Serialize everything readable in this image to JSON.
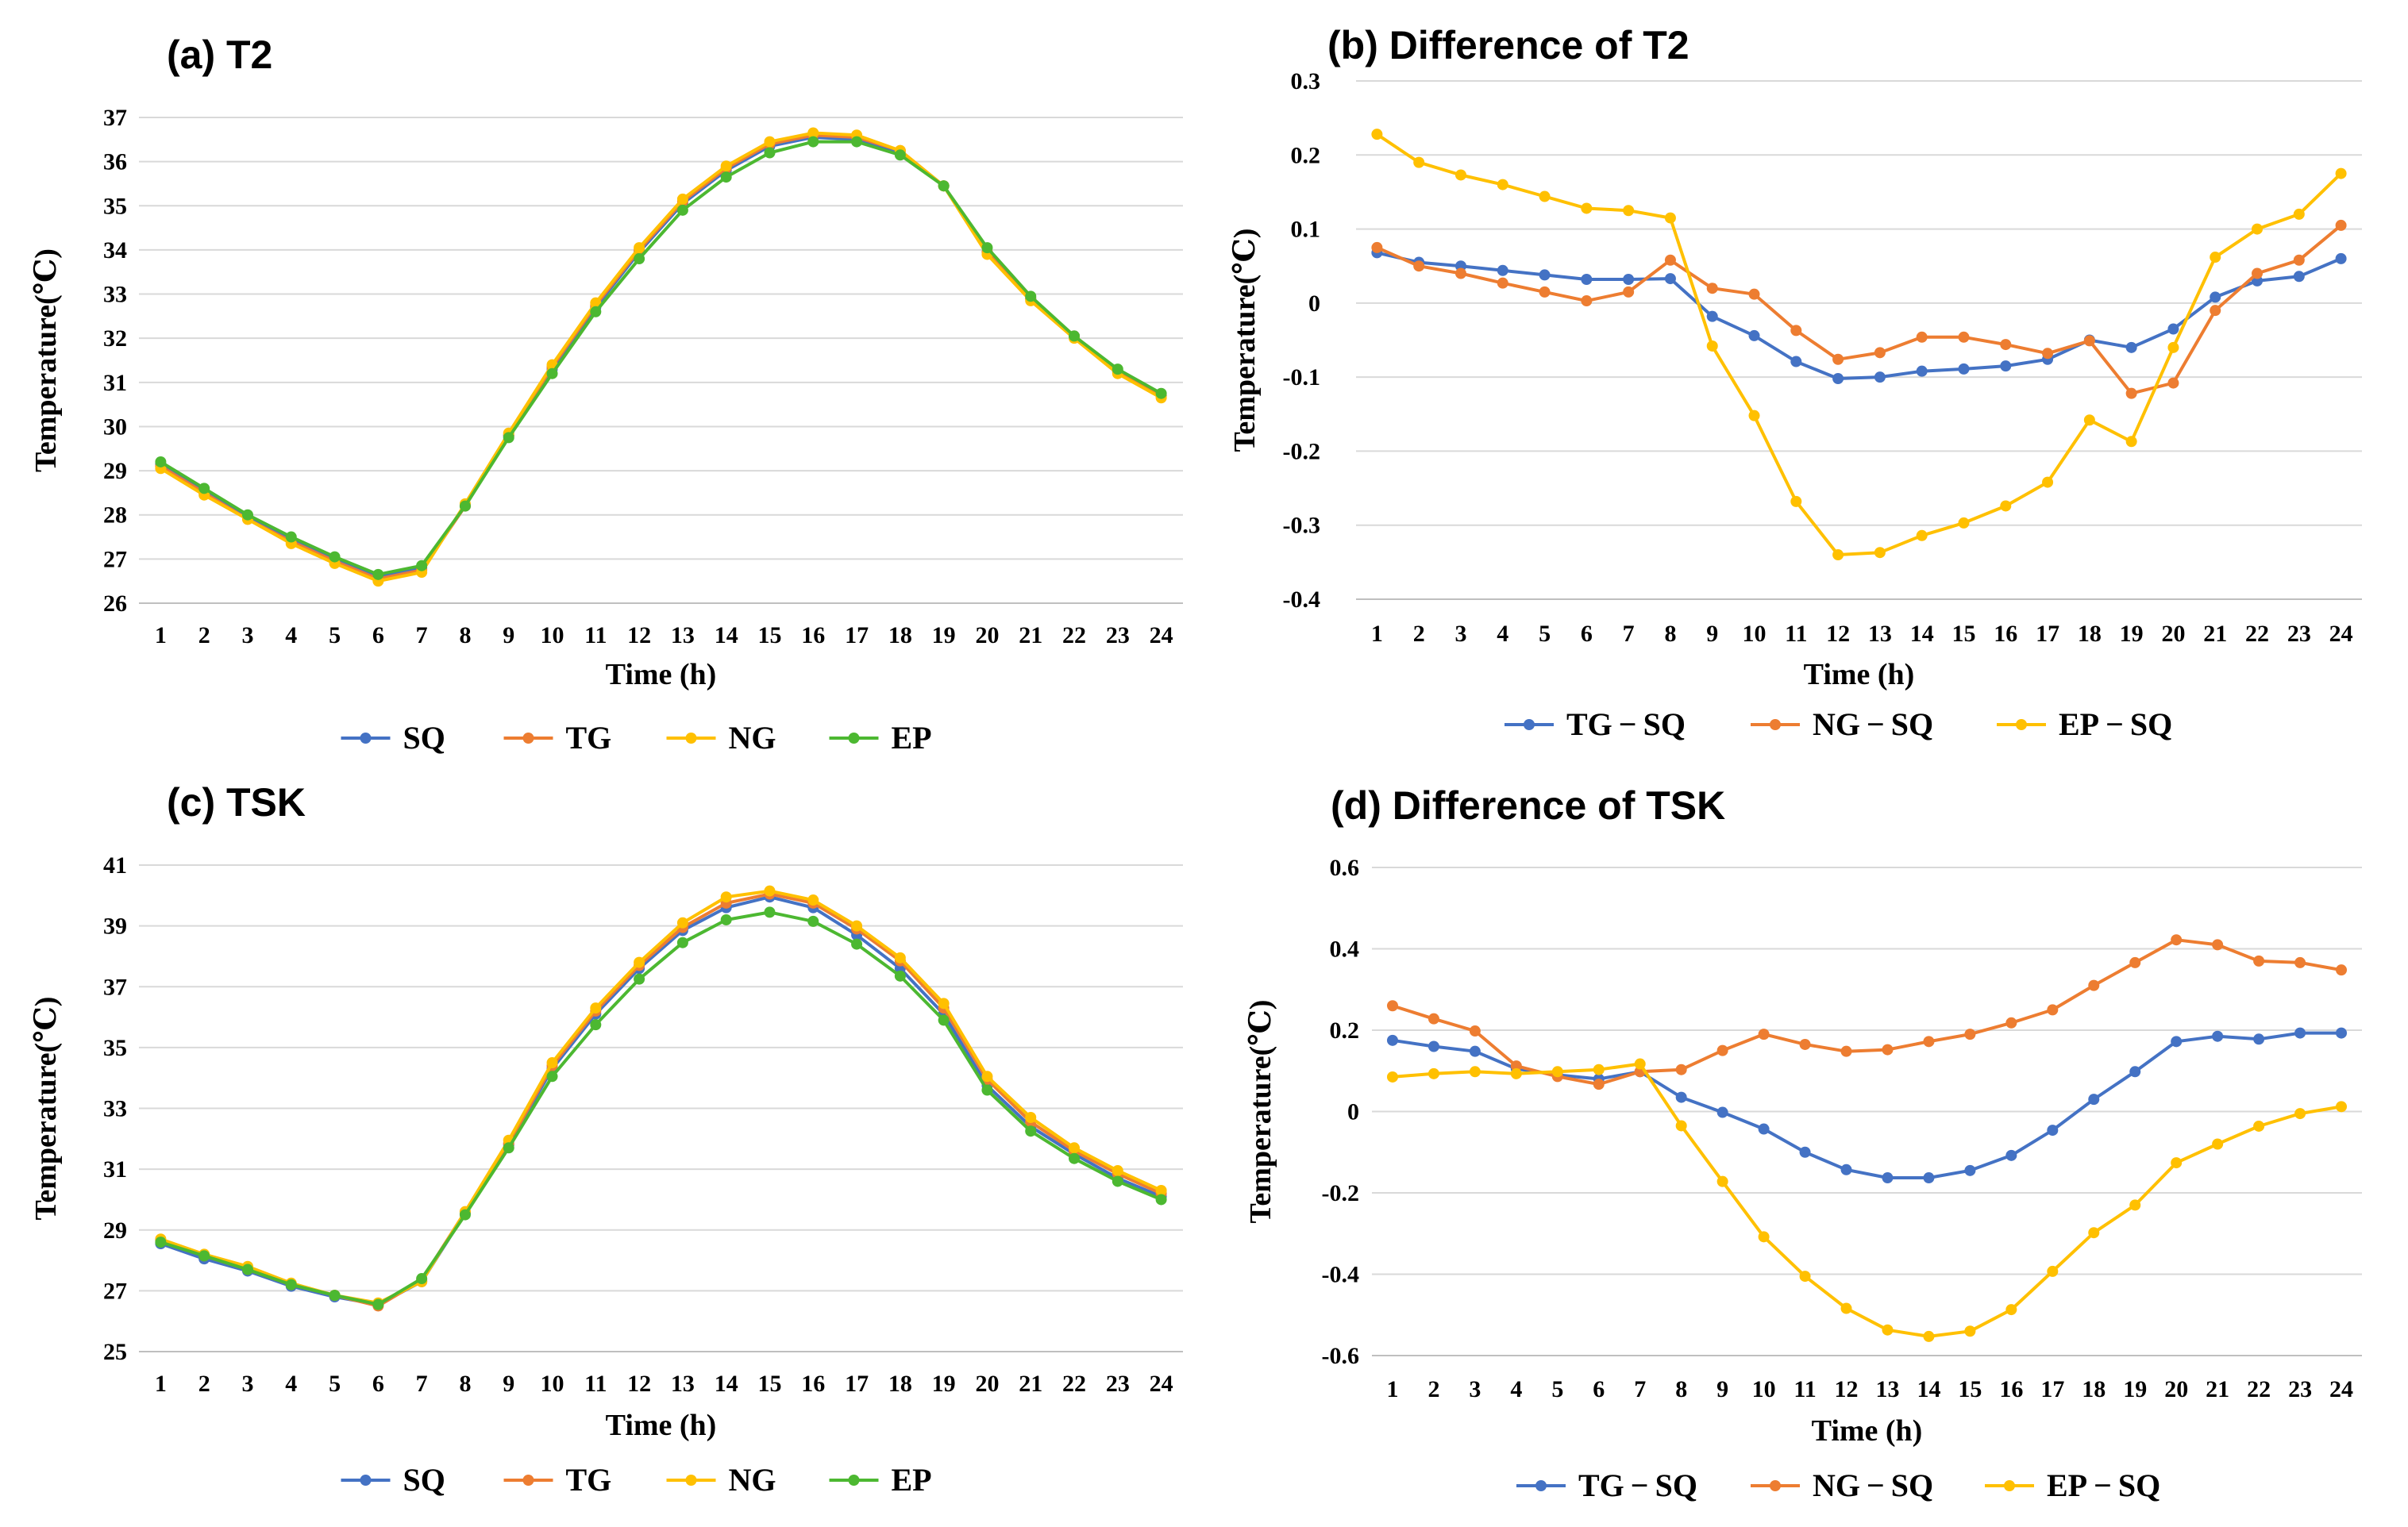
{
  "colors": {
    "SQ": "#4472C4",
    "TG": "#ED7D31",
    "NG": "#FFC000",
    "EP": "#4CB831",
    "grid": "#d9d9d9"
  },
  "chart_data": [
    {
      "panel": "a",
      "type": "line",
      "title": "(a)  T2",
      "xlabel": "Time (h)",
      "ylabel": "Temperature(℃)",
      "categories": [
        "1",
        "2",
        "3",
        "4",
        "5",
        "6",
        "7",
        "8",
        "9",
        "10",
        "11",
        "12",
        "13",
        "14",
        "15",
        "16",
        "17",
        "18",
        "19",
        "20",
        "21",
        "22",
        "23",
        "24"
      ],
      "ylim": [
        26,
        37
      ],
      "yticks": [
        "26",
        "27",
        "28",
        "29",
        "30",
        "31",
        "32",
        "33",
        "34",
        "35",
        "36",
        "37"
      ],
      "legend_position": "bottom",
      "series": [
        {
          "name": "SQ",
          "color_key": "SQ",
          "values": [
            29.15,
            28.55,
            27.95,
            27.45,
            27.0,
            26.6,
            26.8,
            28.2,
            29.8,
            31.3,
            32.7,
            33.95,
            35.05,
            35.8,
            36.35,
            36.55,
            36.5,
            36.2,
            35.45,
            33.95,
            32.9,
            32.05,
            31.25,
            30.7
          ]
        },
        {
          "name": "TG",
          "color_key": "TG",
          "values": [
            29.1,
            28.5,
            27.9,
            27.4,
            26.95,
            26.55,
            26.75,
            28.2,
            29.8,
            31.35,
            32.75,
            34.0,
            35.1,
            35.85,
            36.4,
            36.6,
            36.55,
            36.25,
            35.45,
            33.95,
            32.9,
            32.05,
            31.25,
            30.7
          ]
        },
        {
          "name": "NG",
          "color_key": "NG",
          "values": [
            29.05,
            28.45,
            27.9,
            27.35,
            26.9,
            26.5,
            26.7,
            28.25,
            29.85,
            31.4,
            32.8,
            34.05,
            35.15,
            35.9,
            36.45,
            36.65,
            36.6,
            36.25,
            35.45,
            33.9,
            32.85,
            32.0,
            31.2,
            30.65
          ]
        },
        {
          "name": "EP",
          "color_key": "EP",
          "values": [
            29.2,
            28.6,
            28.0,
            27.5,
            27.05,
            26.65,
            26.85,
            28.2,
            29.75,
            31.2,
            32.6,
            33.8,
            34.9,
            35.65,
            36.2,
            36.45,
            36.45,
            36.15,
            35.45,
            34.05,
            32.95,
            32.05,
            31.3,
            30.75
          ]
        }
      ]
    },
    {
      "panel": "b",
      "type": "line",
      "title": "(b)  Difference of T2",
      "xlabel": "Time (h)",
      "ylabel": "Temperature(℃)",
      "categories": [
        "1",
        "2",
        "3",
        "4",
        "5",
        "6",
        "7",
        "8",
        "9",
        "10",
        "11",
        "12",
        "13",
        "14",
        "15",
        "16",
        "17",
        "18",
        "19",
        "20",
        "21",
        "22",
        "23",
        "24"
      ],
      "ylim": [
        -0.4,
        0.3
      ],
      "yticks": [
        "-0.4",
        "-0.3",
        "-0.2",
        "-0.1",
        "0",
        "0.1",
        "0.2",
        "0.3"
      ],
      "legend_position": "bottom",
      "series": [
        {
          "name": "TG − SQ",
          "color_key": "SQ",
          "values": [
            0.068,
            0.055,
            0.05,
            0.044,
            0.038,
            0.032,
            0.032,
            0.033,
            -0.018,
            -0.044,
            -0.079,
            -0.102,
            -0.1,
            -0.092,
            -0.089,
            -0.085,
            -0.076,
            -0.05,
            -0.06,
            -0.035,
            0.008,
            0.03,
            0.036,
            0.06
          ]
        },
        {
          "name": "NG − SQ",
          "color_key": "TG",
          "values": [
            0.075,
            0.05,
            0.04,
            0.027,
            0.015,
            0.003,
            0.015,
            0.058,
            0.02,
            0.012,
            -0.037,
            -0.076,
            -0.067,
            -0.046,
            -0.046,
            -0.056,
            -0.068,
            -0.051,
            -0.122,
            -0.108,
            -0.01,
            0.04,
            0.058,
            0.105
          ]
        },
        {
          "name": "EP − SQ",
          "color_key": "NG",
          "values": [
            0.228,
            0.19,
            0.173,
            0.16,
            0.144,
            0.128,
            0.125,
            0.115,
            -0.058,
            -0.152,
            -0.268,
            -0.34,
            -0.337,
            -0.314,
            -0.297,
            -0.274,
            -0.242,
            -0.158,
            -0.187,
            -0.06,
            0.062,
            0.1,
            0.12,
            0.175
          ]
        }
      ]
    },
    {
      "panel": "c",
      "type": "line",
      "title": "(c)  TSK",
      "xlabel": "Time (h)",
      "ylabel": "Temperature(℃)",
      "categories": [
        "1",
        "2",
        "3",
        "4",
        "5",
        "6",
        "7",
        "8",
        "9",
        "10",
        "11",
        "12",
        "13",
        "14",
        "15",
        "16",
        "17",
        "18",
        "19",
        "20",
        "21",
        "22",
        "23",
        "24"
      ],
      "ylim": [
        25,
        41
      ],
      "yticks": [
        "25",
        "27",
        "29",
        "31",
        "33",
        "35",
        "37",
        "39",
        "41"
      ],
      "legend_position": "bottom",
      "series": [
        {
          "name": "SQ",
          "color_key": "SQ",
          "values": [
            28.55,
            28.05,
            27.65,
            27.15,
            26.8,
            26.55,
            27.3,
            29.55,
            31.8,
            34.3,
            36.1,
            37.6,
            38.85,
            39.6,
            39.95,
            39.6,
            38.7,
            37.6,
            36.1,
            33.75,
            32.4,
            31.5,
            30.7,
            30.1
          ]
        },
        {
          "name": "TG",
          "color_key": "TG",
          "values": [
            28.65,
            28.15,
            27.7,
            27.2,
            26.85,
            26.5,
            27.35,
            29.6,
            31.85,
            34.4,
            36.2,
            37.7,
            38.95,
            39.75,
            40.05,
            39.75,
            38.9,
            37.85,
            36.3,
            33.95,
            32.55,
            31.6,
            30.85,
            30.2
          ]
        },
        {
          "name": "NG",
          "color_key": "NG",
          "values": [
            28.7,
            28.2,
            27.8,
            27.25,
            26.85,
            26.6,
            27.3,
            29.6,
            31.95,
            34.5,
            36.3,
            37.8,
            39.1,
            39.95,
            40.15,
            39.85,
            39.0,
            37.95,
            36.45,
            34.05,
            32.7,
            31.7,
            30.95,
            30.3
          ]
        },
        {
          "name": "EP",
          "color_key": "EP",
          "values": [
            28.6,
            28.15,
            27.7,
            27.2,
            26.85,
            26.55,
            27.4,
            29.5,
            31.7,
            34.05,
            35.75,
            37.25,
            38.45,
            39.2,
            39.45,
            39.15,
            38.4,
            37.35,
            35.9,
            33.6,
            32.25,
            31.35,
            30.6,
            30.0
          ]
        }
      ]
    },
    {
      "panel": "d",
      "type": "line",
      "title": "(d)  Difference of TSK",
      "xlabel": "Time (h)",
      "ylabel": "Temperature(℃)",
      "categories": [
        "1",
        "2",
        "3",
        "4",
        "5",
        "6",
        "7",
        "8",
        "9",
        "10",
        "11",
        "12",
        "13",
        "14",
        "15",
        "16",
        "17",
        "18",
        "19",
        "20",
        "21",
        "22",
        "23",
        "24"
      ],
      "ylim": [
        -0.6,
        0.6
      ],
      "yticks": [
        "-0.6",
        "-0.4",
        "-0.2",
        "0",
        "0.2",
        "0.4",
        "0.6"
      ],
      "legend_position": "bottom",
      "series": [
        {
          "name": "TG − SQ",
          "color_key": "SQ",
          "values": [
            0.175,
            0.16,
            0.148,
            0.105,
            0.09,
            0.08,
            0.098,
            0.035,
            -0.002,
            -0.043,
            -0.1,
            -0.143,
            -0.163,
            -0.163,
            -0.145,
            -0.108,
            -0.046,
            0.03,
            0.098,
            0.172,
            0.185,
            0.178,
            0.193,
            0.193
          ]
        },
        {
          "name": "NG − SQ",
          "color_key": "TG",
          "values": [
            0.26,
            0.228,
            0.198,
            0.112,
            0.086,
            0.067,
            0.098,
            0.103,
            0.15,
            0.19,
            0.165,
            0.148,
            0.152,
            0.172,
            0.19,
            0.218,
            0.25,
            0.31,
            0.366,
            0.422,
            0.41,
            0.37,
            0.366,
            0.348
          ]
        },
        {
          "name": "EP − SQ",
          "color_key": "NG",
          "values": [
            0.085,
            0.093,
            0.098,
            0.093,
            0.098,
            0.103,
            0.117,
            -0.035,
            -0.172,
            -0.308,
            -0.405,
            -0.484,
            -0.537,
            -0.553,
            -0.54,
            -0.487,
            -0.393,
            -0.298,
            -0.23,
            -0.126,
            -0.08,
            -0.036,
            -0.005,
            0.012
          ]
        }
      ]
    }
  ]
}
